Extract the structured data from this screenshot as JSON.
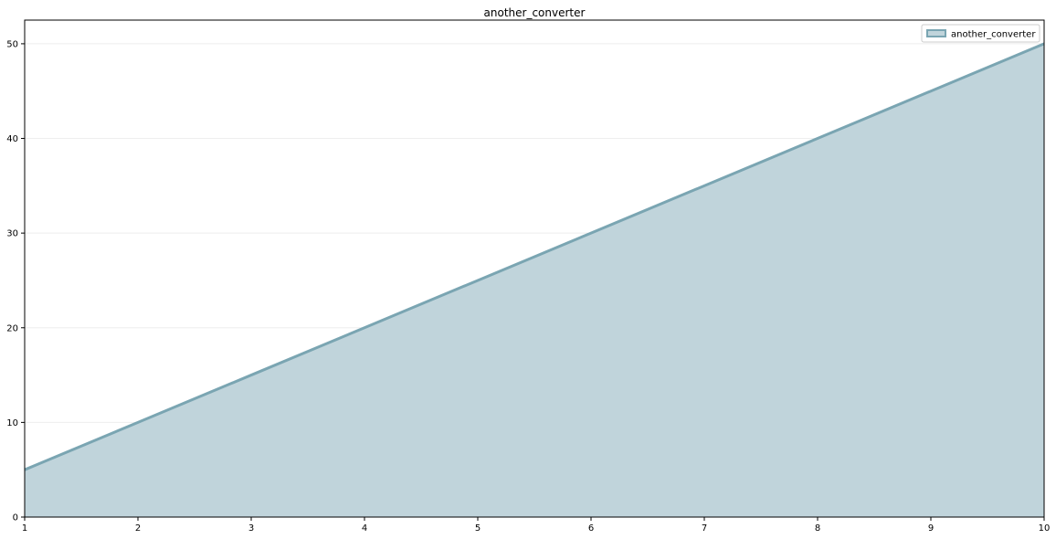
{
  "chart_data": {
    "type": "area",
    "title": "another_converter",
    "xlabel": "",
    "ylabel": "",
    "x": [
      1,
      2,
      3,
      4,
      5,
      6,
      7,
      8,
      9,
      10
    ],
    "series": [
      {
        "name": "another_converter",
        "values": [
          5,
          10,
          15,
          20,
          25,
          30,
          35,
          40,
          45,
          50
        ],
        "fill_color": "#c0d4db",
        "line_color": "#7aa5b2"
      }
    ],
    "xlim": [
      1,
      10
    ],
    "ylim": [
      0,
      52.5
    ],
    "xticks": [
      1,
      2,
      3,
      4,
      5,
      6,
      7,
      8,
      9,
      10
    ],
    "yticks": [
      0,
      10,
      20,
      30,
      40,
      50
    ],
    "grid": "horizontal",
    "legend_position": "top-right",
    "colors": {
      "background": "#ffffff",
      "axes": "#000000",
      "grid": "#eeeeee"
    }
  }
}
